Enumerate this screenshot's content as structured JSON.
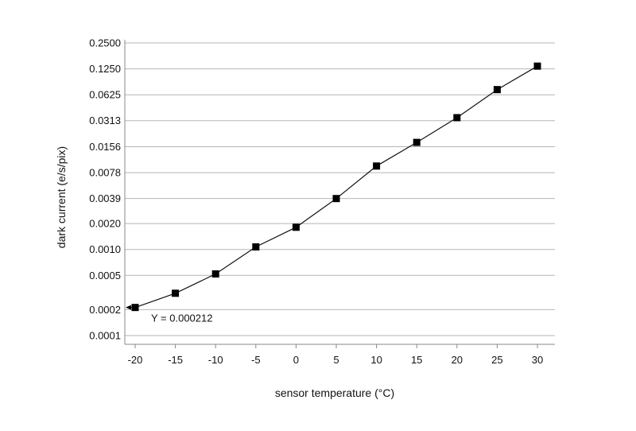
{
  "chart_data": {
    "type": "line",
    "title": "",
    "xlabel": "sensor temperature (°C)",
    "ylabel": "dark current (e/s/pix)",
    "y_scale": "log2",
    "xlim": [
      -21,
      32
    ],
    "ylim": [
      7.5e-05,
      0.25
    ],
    "x_ticks": [
      "-20",
      "-15",
      "-10",
      "-5",
      "0",
      "5",
      "10",
      "15",
      "20",
      "25",
      "30"
    ],
    "y_ticks": [
      "0.0001",
      "0.0002",
      "0.0005",
      "0.0010",
      "0.0020",
      "0.0039",
      "0.0078",
      "0.0156",
      "0.0313",
      "0.0625",
      "0.1250",
      "0.2500"
    ],
    "grid": "horizontal",
    "marker": "square",
    "colors": {
      "line": "#111111",
      "grid": "#b5b5b5",
      "marker": "#000000"
    },
    "series": [
      {
        "x": [
          -20,
          -15,
          -10,
          -5,
          0,
          5,
          10,
          15,
          20,
          25,
          30
        ],
        "y": [
          0.000212,
          0.00031,
          0.00052,
          0.00107,
          0.00181,
          0.0039,
          0.0093,
          0.0175,
          0.0339,
          0.0718,
          0.1345
        ]
      }
    ],
    "annotations": [
      {
        "text": "Y = 0.000212",
        "x": -20,
        "y": 0.000212
      }
    ]
  }
}
